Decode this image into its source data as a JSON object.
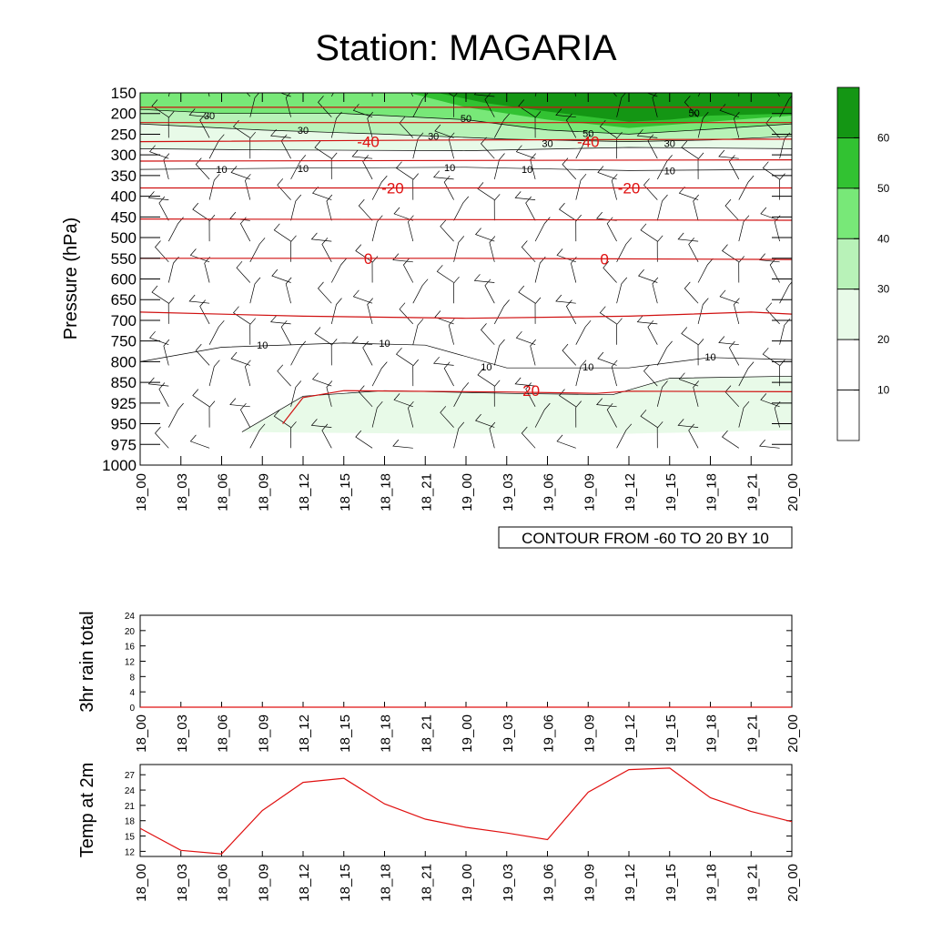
{
  "title": "Station: MAGARIA",
  "chart_data": [
    {
      "type": "heatmap",
      "name": "cross-section",
      "ylabel": "Pressure (hPa)",
      "pressure_levels": [
        150,
        200,
        250,
        300,
        350,
        400,
        450,
        500,
        550,
        600,
        650,
        700,
        750,
        800,
        850,
        925,
        950,
        975,
        1000
      ],
      "ylim": [
        150,
        1000
      ],
      "time_labels": [
        "18_00",
        "18_03",
        "18_06",
        "18_09",
        "18_12",
        "18_15",
        "18_18",
        "18_21",
        "19_00",
        "19_03",
        "19_06",
        "19_09",
        "19_12",
        "19_15",
        "19_18",
        "19_21",
        "20_00"
      ],
      "fill_colors": [
        "#ffffff",
        "#ffffff",
        "#e8fae8",
        "#b8f2b8",
        "#78e878",
        "#32c232",
        "#149614"
      ],
      "colorbar_labels": [
        "10",
        "20",
        "30",
        "40",
        "50",
        "60"
      ],
      "speed_labels": [
        {
          "text": "30",
          "t": 1.7,
          "p": 205
        },
        {
          "text": "30",
          "t": 4.0,
          "p": 240
        },
        {
          "text": "30",
          "t": 7.2,
          "p": 255
        },
        {
          "text": "50",
          "t": 8.0,
          "p": 212
        },
        {
          "text": "50",
          "t": 11.0,
          "p": 248
        },
        {
          "text": "30",
          "t": 10.0,
          "p": 272
        },
        {
          "text": "30",
          "t": 13.0,
          "p": 272
        },
        {
          "text": "50",
          "t": 13.6,
          "p": 198
        },
        {
          "text": "10",
          "t": 2.0,
          "p": 335
        },
        {
          "text": "10",
          "t": 4.0,
          "p": 333
        },
        {
          "text": "10",
          "t": 7.6,
          "p": 330
        },
        {
          "text": "10",
          "t": 9.5,
          "p": 335
        },
        {
          "text": "10",
          "t": 13.0,
          "p": 338
        },
        {
          "text": "10",
          "t": 3.0,
          "p": 760
        },
        {
          "text": "10",
          "t": 6.0,
          "p": 755
        },
        {
          "text": "10",
          "t": 8.5,
          "p": 812
        },
        {
          "text": "10",
          "t": 11.0,
          "p": 812
        },
        {
          "text": "10",
          "t": 14.0,
          "p": 788
        }
      ],
      "temp_labels": [
        {
          "text": "-40",
          "t": 5.6,
          "p": 268
        },
        {
          "text": "-40",
          "t": 11.0,
          "p": 268
        },
        {
          "text": "-20",
          "t": 6.2,
          "p": 380
        },
        {
          "text": "-20",
          "t": 12.0,
          "p": 380
        },
        {
          "text": "0",
          "t": 5.6,
          "p": 550
        },
        {
          "text": "0",
          "t": 11.4,
          "p": 552
        },
        {
          "text": "20",
          "t": 9.6,
          "p": 880
        }
      ],
      "annotation": "CONTOUR FROM -60 TO 20 BY 10"
    },
    {
      "type": "line",
      "name": "rain",
      "ylabel": "3hr rain total",
      "ylim": [
        0,
        24
      ],
      "yticks": [
        0,
        4,
        8,
        12,
        16,
        20,
        24
      ],
      "categories": [
        "18_00",
        "18_03",
        "18_06",
        "18_09",
        "18_12",
        "18_15",
        "18_18",
        "18_21",
        "19_00",
        "19_03",
        "19_06",
        "19_09",
        "19_12",
        "19_15",
        "19_18",
        "19_21",
        "20_00"
      ],
      "values": [
        0,
        0,
        0,
        0,
        0,
        0,
        0,
        0,
        0,
        0,
        0,
        0,
        0,
        0,
        0,
        0,
        0
      ]
    },
    {
      "type": "line",
      "name": "temp",
      "ylabel": "Temp at 2m",
      "ylim": [
        11,
        29
      ],
      "yticks": [
        12,
        15,
        18,
        21,
        24,
        27
      ],
      "categories": [
        "18_00",
        "18_03",
        "18_06",
        "18_09",
        "18_12",
        "18_15",
        "18_18",
        "18_21",
        "19_00",
        "19_03",
        "19_06",
        "19_09",
        "19_12",
        "19_15",
        "19_18",
        "19_21",
        "20_00"
      ],
      "values": [
        16.5,
        12.2,
        11.5,
        20.0,
        25.5,
        26.3,
        21.3,
        18.3,
        16.7,
        15.6,
        14.3,
        23.6,
        28.0,
        28.3,
        22.5,
        19.8,
        17.8
      ],
      "color": "#e01010"
    }
  ]
}
